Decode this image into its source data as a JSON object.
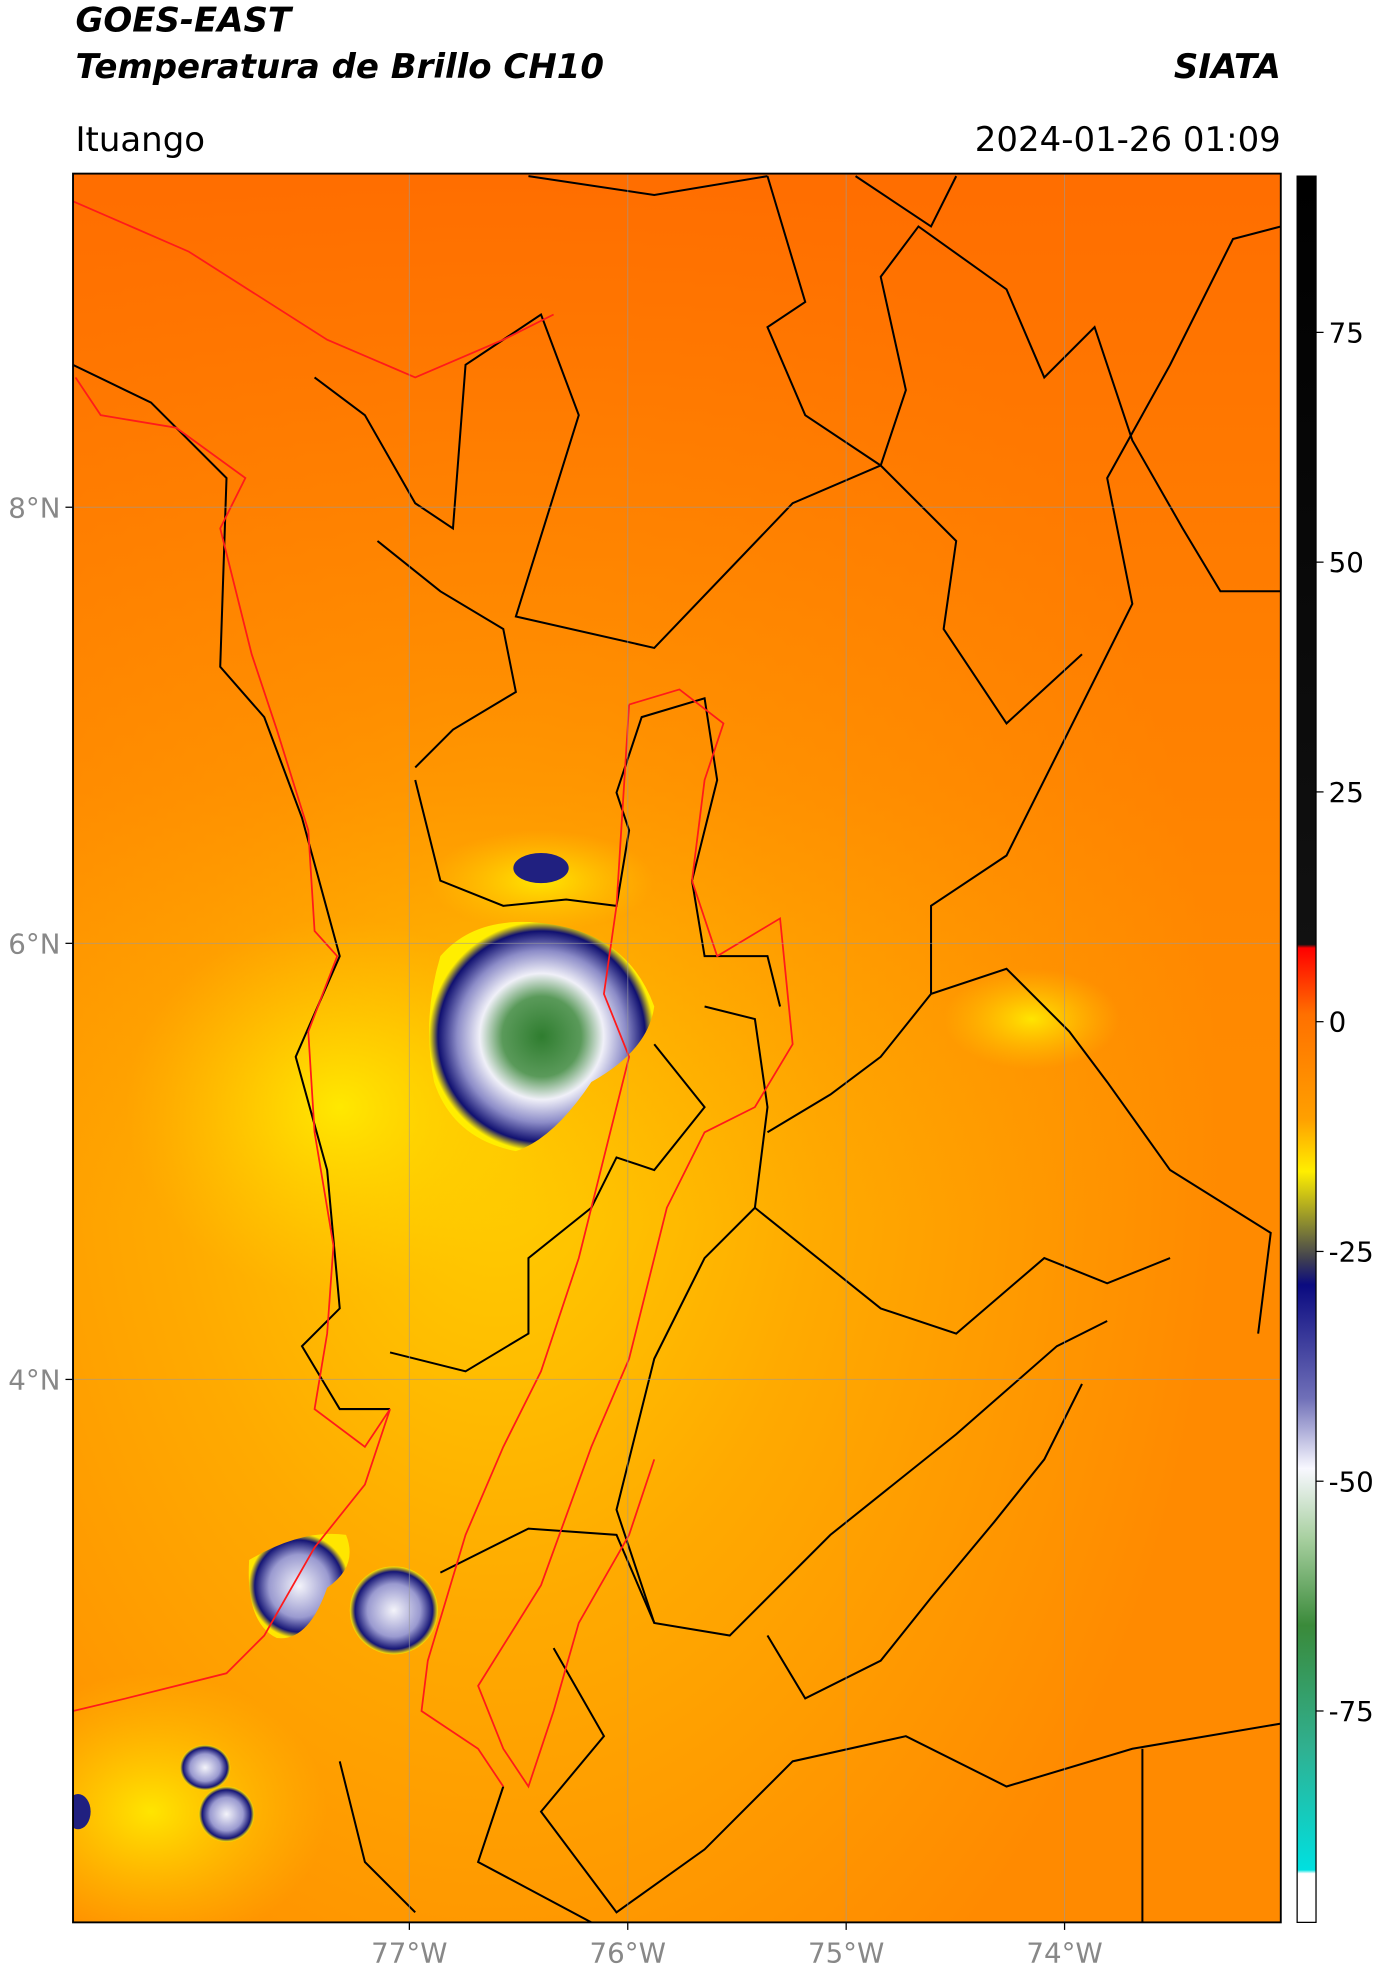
{
  "header": {
    "title": "GOES-EAST",
    "subtitle": "Temperatura de Brillo CH10",
    "source": "SIATA",
    "location": "Ituango",
    "datetime": "2024-01-26 01:09"
  },
  "map": {
    "xlim": [
      -78.54,
      -73.01
    ],
    "ylim": [
      1.51,
      9.53
    ],
    "lon_ticks": [
      {
        "value": -77,
        "label": "77°W"
      },
      {
        "value": -76,
        "label": "76°W"
      },
      {
        "value": -75,
        "label": "75°W"
      },
      {
        "value": -74,
        "label": "74°W"
      }
    ],
    "lat_ticks": [
      {
        "value": 8,
        "label": "8°N"
      },
      {
        "value": 6,
        "label": "6°N"
      },
      {
        "value": 4,
        "label": "4°N"
      }
    ],
    "grid": true
  },
  "colorbar": {
    "lim": [
      -98,
      92
    ],
    "ticks": [
      75,
      50,
      25,
      0,
      -25,
      -50,
      -75
    ]
  }
}
